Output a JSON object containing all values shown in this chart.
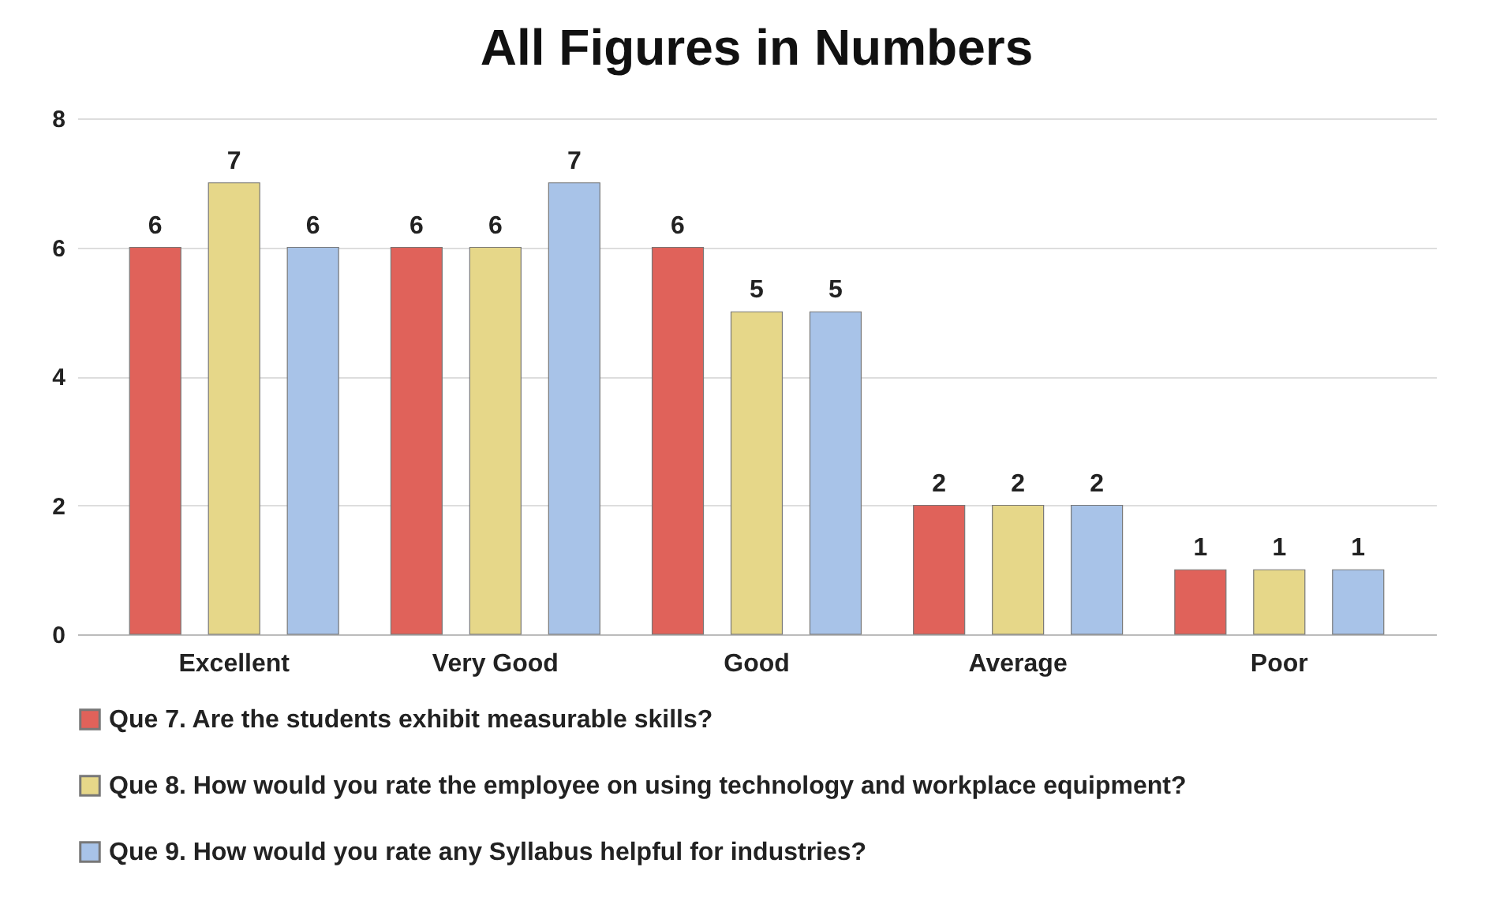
{
  "chart_data": {
    "type": "bar",
    "title": "All Figures in Numbers",
    "categories": [
      "Excellent",
      "Very Good",
      "Good",
      "Average",
      "Poor"
    ],
    "series": [
      {
        "name": "Que 7. Are the students exhibit measurable skills?",
        "color": "#e0625a",
        "values": [
          6,
          6,
          6,
          2,
          1
        ]
      },
      {
        "name": "Que 8. How would you rate the employee on using technology and workplace equipment?",
        "color": "#e6d789",
        "values": [
          7,
          6,
          5,
          2,
          1
        ]
      },
      {
        "name": "Que 9. How would you rate any Syllabus helpful for industries?",
        "color": "#a8c3e8",
        "values": [
          6,
          7,
          5,
          2,
          1
        ]
      }
    ],
    "ylim": [
      0,
      8
    ],
    "yticks": [
      0,
      2,
      4,
      6,
      8
    ],
    "grid": "y",
    "legend": "bottom",
    "data_labels": true
  }
}
